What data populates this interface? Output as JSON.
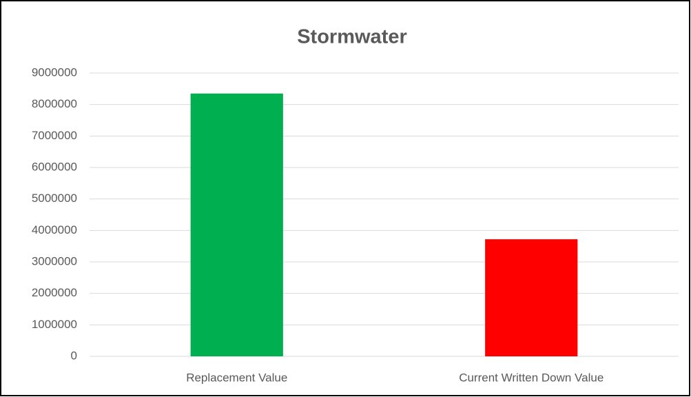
{
  "chart_data": {
    "type": "bar",
    "title": "Stormwater",
    "categories": [
      "Replacement Value",
      "Current Written Down Value"
    ],
    "values": [
      8350000,
      3720000
    ],
    "colors": [
      "#00b050",
      "#ff0000"
    ],
    "ylim": [
      0,
      9000000
    ],
    "yticks": [
      0,
      1000000,
      2000000,
      3000000,
      4000000,
      5000000,
      6000000,
      7000000,
      8000000,
      9000000
    ],
    "grid": true
  }
}
